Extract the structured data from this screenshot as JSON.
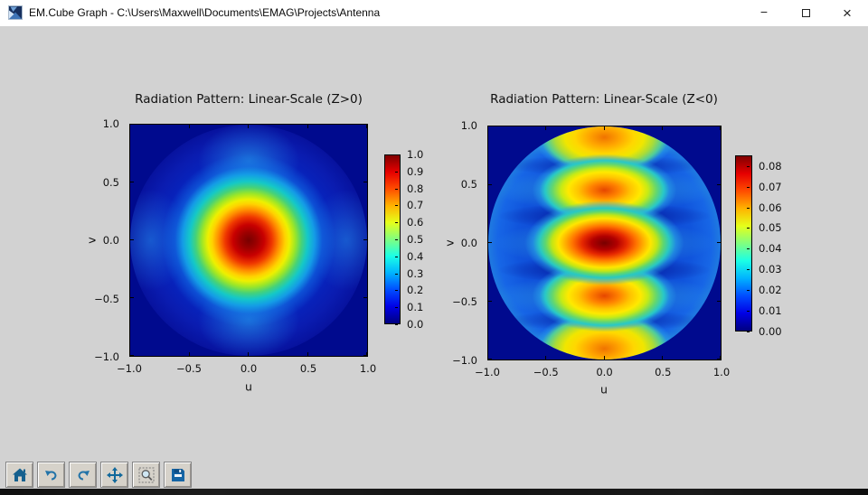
{
  "window": {
    "title": "EM.Cube Graph - C:\\Users\\Maxwell\\Documents\\EMAG\\Projects\\Antenna",
    "controls": {
      "minimize_glyph": "−",
      "close_glyph": "×"
    },
    "app_icon": "em-cube-logo-icon"
  },
  "figure": {
    "background_color": "#d2d2d2",
    "plots": [
      {
        "title": "Radiation Pattern: Linear-Scale (Z>0)",
        "xlabel": "u",
        "ylabel": "v",
        "xtick_labels": [
          "−1.0",
          "−0.5",
          "0.0",
          "0.5",
          "1.0"
        ],
        "ytick_labels": [
          "1.0",
          "0.5",
          "0.0",
          "−0.5",
          "−1.0"
        ],
        "colorbar_tick_labels": [
          "1.0",
          "0.9",
          "0.8",
          "0.7",
          "0.6",
          "0.5",
          "0.4",
          "0.3",
          "0.2",
          "0.1",
          "0.0"
        ]
      },
      {
        "title": "Radiation Pattern: Linear-Scale (Z<0)",
        "xlabel": "u",
        "ylabel": "v",
        "xtick_labels": [
          "−1.0",
          "−0.5",
          "0.0",
          "0.5",
          "1.0"
        ],
        "ytick_labels": [
          "1.0",
          "0.5",
          "0.0",
          "−0.5",
          "−1.0"
        ],
        "colorbar_tick_labels": [
          "0.08",
          "0.07",
          "0.06",
          "0.05",
          "0.04",
          "0.03",
          "0.02",
          "0.01",
          "0.00"
        ]
      }
    ]
  },
  "toolbar": {
    "buttons": [
      {
        "name": "home",
        "icon": "home-icon"
      },
      {
        "name": "back",
        "icon": "undo-arrow-icon"
      },
      {
        "name": "forward",
        "icon": "redo-arrow-icon"
      },
      {
        "name": "pan",
        "icon": "move-arrows-icon"
      },
      {
        "name": "zoom-to-rect",
        "icon": "magnifier-icon"
      },
      {
        "name": "save",
        "icon": "floppy-disk-icon"
      }
    ]
  },
  "chart_data": [
    {
      "type": "heatmap",
      "title": "Radiation Pattern: Linear-Scale (Z>0)",
      "xlabel": "u",
      "ylabel": "v",
      "xlim": [
        -1.0,
        1.0
      ],
      "ylim": [
        -1.0,
        1.0
      ],
      "xticks": [
        -1.0,
        -0.5,
        0.0,
        0.5,
        1.0
      ],
      "yticks": [
        -1.0,
        -0.5,
        0.0,
        0.5,
        1.0
      ],
      "colormap": "jet",
      "colorbar_range": [
        0.0,
        1.0
      ],
      "colorbar_ticks": [
        0.0,
        0.1,
        0.2,
        0.3,
        0.4,
        0.5,
        0.6,
        0.7,
        0.8,
        0.9,
        1.0
      ],
      "grid": false,
      "pattern_summary": "Single broadside main beam centered at (u,v)=(0,0) with peak 1.0; value falls off radially (red core radius ~0.12, yellow ring ~0.3, cyan ~0.5), weak secondary glow along u=0 and v=0 axes near ±0.65; region outside unit circle ~0 (dark blue).",
      "peaks": [
        {
          "u": 0.0,
          "v": 0.0,
          "value": 1.0
        }
      ]
    },
    {
      "type": "heatmap",
      "title": "Radiation Pattern: Linear-Scale (Z<0)",
      "xlabel": "u",
      "ylabel": "v",
      "xlim": [
        -1.0,
        1.0
      ],
      "ylim": [
        -1.0,
        1.0
      ],
      "xticks": [
        -1.0,
        -0.5,
        0.0,
        0.5,
        1.0
      ],
      "yticks": [
        -1.0,
        -0.5,
        0.0,
        0.5,
        1.0
      ],
      "colormap": "jet",
      "colorbar_range": [
        0.0,
        0.085
      ],
      "colorbar_ticks": [
        0.0,
        0.01,
        0.02,
        0.03,
        0.04,
        0.05,
        0.06,
        0.07,
        0.08
      ],
      "grid": false,
      "pattern_summary": "Back-lobe pattern inside unit circle: five horizontally-elongated lobes along the v axis at v ≈ 0 (peak ~0.085, red core), v ≈ ±0.45 (~0.07, orange cores) and v ≈ ±0.9 (~0.065, clipped by circle edge); dark null bands at v ≈ ±0.22 and ±0.65; outside unit circle ~0 (dark blue).",
      "peaks": [
        {
          "u": 0.0,
          "v": 0.0,
          "value": 0.085
        },
        {
          "u": 0.0,
          "v": 0.45,
          "value": 0.07
        },
        {
          "u": 0.0,
          "v": -0.45,
          "value": 0.07
        },
        {
          "u": 0.0,
          "v": 0.9,
          "value": 0.065
        },
        {
          "u": 0.0,
          "v": -0.9,
          "value": 0.065
        }
      ]
    }
  ]
}
